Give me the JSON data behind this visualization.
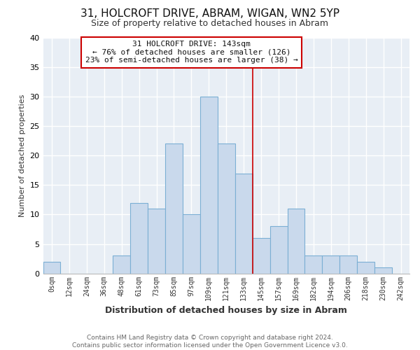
{
  "title": "31, HOLCROFT DRIVE, ABRAM, WIGAN, WN2 5YP",
  "subtitle": "Size of property relative to detached houses in Abram",
  "xlabel": "Distribution of detached houses by size in Abram",
  "ylabel": "Number of detached properties",
  "bin_labels": [
    "0sqm",
    "12sqm",
    "24sqm",
    "36sqm",
    "48sqm",
    "61sqm",
    "73sqm",
    "85sqm",
    "97sqm",
    "109sqm",
    "121sqm",
    "133sqm",
    "145sqm",
    "157sqm",
    "169sqm",
    "182sqm",
    "194sqm",
    "206sqm",
    "218sqm",
    "230sqm",
    "242sqm"
  ],
  "bar_heights": [
    2,
    0,
    0,
    0,
    3,
    12,
    11,
    22,
    10,
    30,
    22,
    17,
    6,
    8,
    11,
    3,
    3,
    3,
    2,
    1,
    0
  ],
  "bar_color": "#c9d9ec",
  "bar_edge_color": "#7bafd4",
  "vline_x_idx": 12,
  "vline_color": "#cc0000",
  "annotation_box_text": "31 HOLCROFT DRIVE: 143sqm\n← 76% of detached houses are smaller (126)\n23% of semi-detached houses are larger (38) →",
  "annotation_box_color": "#cc0000",
  "annotation_box_facecolor": "#ffffff",
  "ylim": [
    0,
    40
  ],
  "yticks": [
    0,
    5,
    10,
    15,
    20,
    25,
    30,
    35,
    40
  ],
  "footer_text": "Contains HM Land Registry data © Crown copyright and database right 2024.\nContains public sector information licensed under the Open Government Licence v3.0.",
  "bg_color": "#ffffff",
  "plot_bg_color": "#e8eef5",
  "grid_color": "#ffffff",
  "title_fontsize": 11,
  "subtitle_fontsize": 9
}
